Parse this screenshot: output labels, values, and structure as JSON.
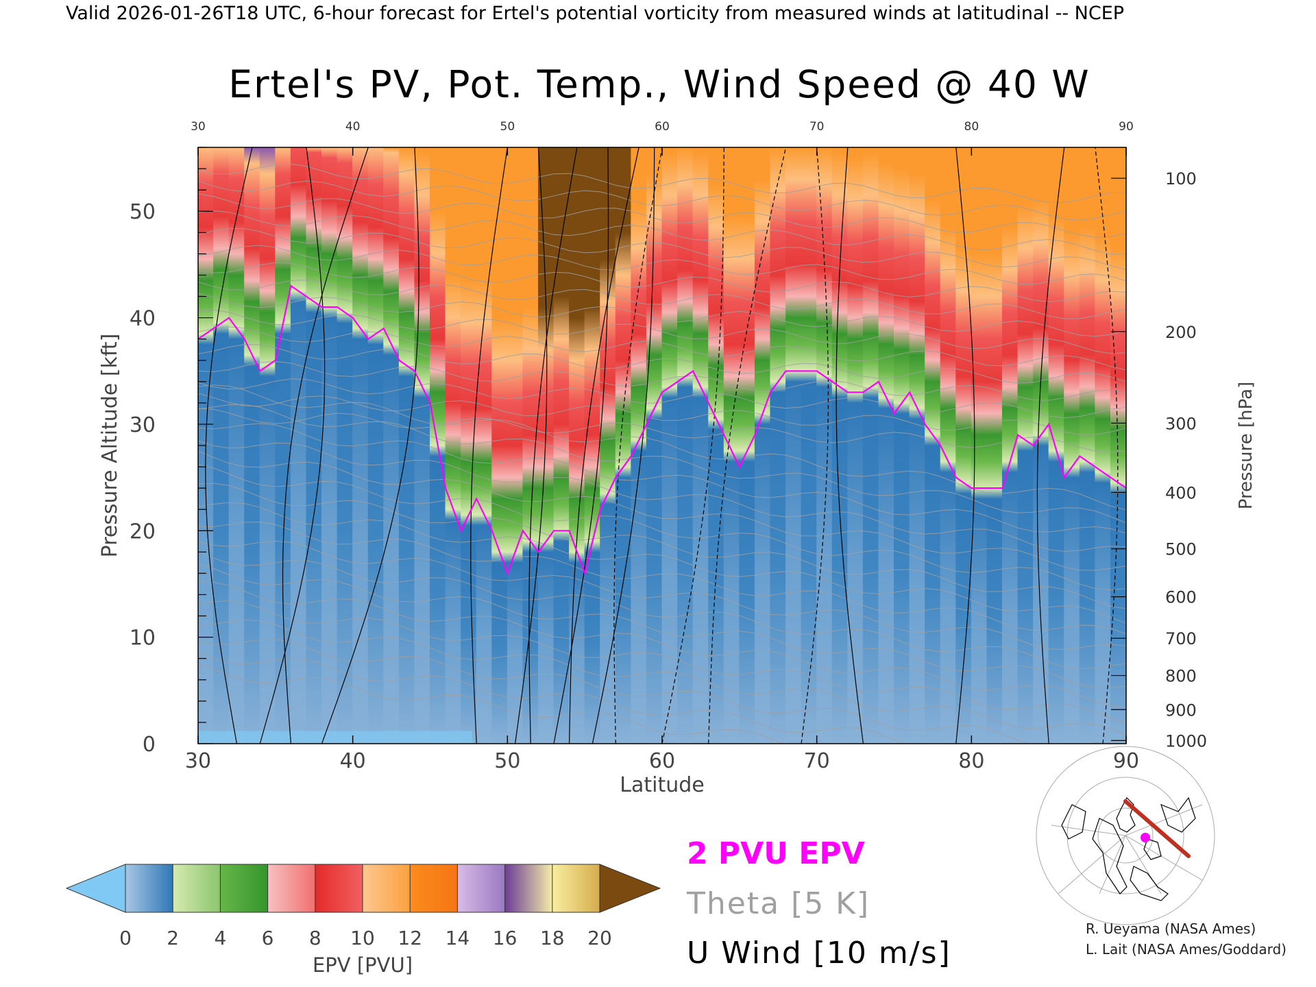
{
  "header": {
    "valid_line": "Valid 2026-01-26T18 UTC, 6-hour forecast for Ertel's potential vorticity from measured winds at latitudinal -- NCEP"
  },
  "chart_data": {
    "type": "heatmap",
    "title": "Ertel's PV, Pot. Temp., Wind Speed @ 40 W",
    "xlabel": "Latitude",
    "ylabel_left": "Pressure Altitude [kft]",
    "ylabel_right": "Pressure [hPa]",
    "xlim": [
      30,
      90
    ],
    "ylim": [
      0,
      56
    ],
    "x_ticks": [
      30,
      40,
      50,
      60,
      70,
      80,
      90
    ],
    "x_ticks_top": [
      "30",
      "40",
      "50",
      "60",
      "70",
      "80",
      "90"
    ],
    "y_ticks_left": [
      0,
      10,
      20,
      30,
      40,
      50
    ],
    "y_ticks_right": [
      {
        "label": "100",
        "kft": 53.1
      },
      {
        "label": "200",
        "kft": 38.7
      },
      {
        "label": "300",
        "kft": 30.1
      },
      {
        "label": "400",
        "kft": 23.6
      },
      {
        "label": "500",
        "kft": 18.3
      },
      {
        "label": "600",
        "kft": 13.8
      },
      {
        "label": "700",
        "kft": 9.9
      },
      {
        "label": "800",
        "kft": 6.4
      },
      {
        "label": "900",
        "kft": 3.2
      },
      {
        "label": "1000",
        "kft": 0.3
      }
    ],
    "tropopause_2pvu": {
      "lat": [
        30,
        31,
        32,
        33,
        34,
        35,
        36,
        37,
        38,
        39,
        40,
        41,
        42,
        43,
        44,
        45,
        46,
        47,
        48,
        49,
        50,
        51,
        52,
        53,
        54,
        55,
        56,
        57,
        58,
        59,
        60,
        61,
        62,
        63,
        64,
        65,
        66,
        67,
        68,
        69,
        70,
        71,
        72,
        73,
        74,
        75,
        76,
        77,
        78,
        79,
        80,
        81,
        82,
        83,
        84,
        85,
        86,
        87,
        88,
        89,
        90
      ],
      "kft": [
        38,
        39,
        40,
        38,
        35,
        36,
        43,
        42,
        41,
        41,
        40,
        38,
        39,
        36,
        35,
        32,
        24,
        20,
        23,
        20,
        16,
        20,
        18,
        20,
        20,
        16,
        22,
        25,
        27,
        30,
        33,
        34,
        35,
        32,
        29,
        26,
        29,
        33,
        35,
        35,
        35,
        34,
        33,
        33,
        34,
        31,
        33,
        30,
        28,
        25,
        24,
        24,
        24,
        29,
        28,
        30,
        25,
        27,
        26,
        25,
        24
      ]
    },
    "epv_colorbar": {
      "label": "EPV [PVU]",
      "ticks": [
        "0",
        "2",
        "4",
        "6",
        "8",
        "10",
        "12",
        "14",
        "16",
        "18",
        "20"
      ],
      "colors": {
        "below_0": "#7fc9f4",
        "0_2": [
          "#8fb4d9",
          "#2f78b8"
        ],
        "2_4": [
          "#cfe6a3",
          "#8cc56e"
        ],
        "4_6": [
          "#6ab84a",
          "#3a9830"
        ],
        "6_8": [
          "#f7b3b3",
          "#f07070"
        ],
        "8_10": [
          "#e83a3a",
          "#f05050"
        ],
        "10_12": [
          "#fdbf80",
          "#fca040"
        ],
        "12_14": [
          "#fc9020",
          "#f87818"
        ],
        "14_16": [
          "#d0b0e0",
          "#a080c8"
        ],
        "16_18": [
          "#7e4fa0",
          "#f6f0a0"
        ],
        "18_20": [
          "#f8f0a0",
          "#d8b050"
        ],
        "above_20": "#7a4a10"
      }
    },
    "legend": [
      {
        "name": "2 PVU EPV",
        "color": "#ff00ff"
      },
      {
        "name": "Theta [5 K]",
        "color": "#a0a0a0"
      },
      {
        "name": "U Wind [10 m/s]",
        "color": "#000000"
      }
    ],
    "grid": false
  },
  "credits": [
    "R. Ueyama (NASA Ames)",
    "L. Lait (NASA Ames/Goddard)"
  ],
  "colors": {
    "tropopause": "#ff00ff",
    "theta": "#a0a0a0",
    "wind": "#000000",
    "map_track": "#c03020",
    "map_marker": "#ff00ff"
  }
}
